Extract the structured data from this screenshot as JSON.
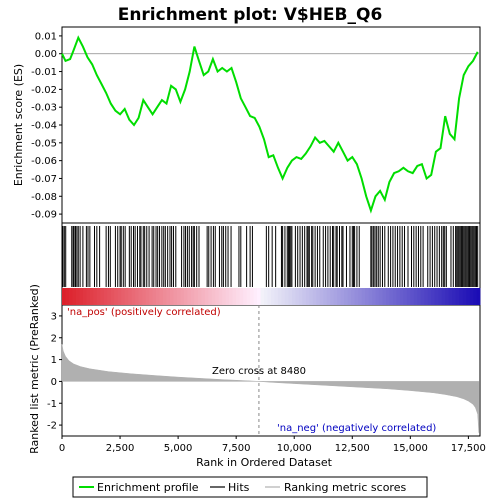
{
  "title": "Enrichment plot: V$HEB_Q6",
  "colors": {
    "enrichment": "#00dd00",
    "hits": "#000000",
    "metric_fill": "#b0b0b0",
    "positive_label": "#c00000",
    "negative_label": "#0000c0",
    "zero_line": "#888888"
  },
  "annotations": {
    "positive": "'na_pos' (positively correlated)",
    "negative": "'na_neg' (negatively correlated)",
    "zero_cross": "Zero cross at 8480"
  },
  "legend": {
    "items": [
      {
        "label": "Enrichment profile",
        "icon": "green-line"
      },
      {
        "label": "Hits",
        "icon": "black-line"
      },
      {
        "label": "Ranking metric scores",
        "icon": "gray-line"
      }
    ]
  },
  "chart_data": [
    {
      "type": "line",
      "panel": "enrichment",
      "ylabel": "Enrichment score (ES)",
      "xlim": [
        0,
        18000
      ],
      "ylim": [
        -0.095,
        0.015
      ],
      "yticks": [
        0.01,
        0.0,
        -0.01,
        -0.02,
        -0.03,
        -0.04,
        -0.05,
        -0.06,
        -0.07,
        -0.08,
        -0.09
      ],
      "ytick_labels": [
        "0.01",
        "0.00",
        "-0.01",
        "-0.02",
        "-0.03",
        "-0.04",
        "-0.05",
        "-0.06",
        "-0.07",
        "-0.08",
        "-0.09"
      ],
      "series": [
        {
          "x": [
            0,
            150,
            350,
            500,
            700,
            900,
            1100,
            1300,
            1500,
            1700,
            1900,
            2100,
            2300,
            2500,
            2700,
            2900,
            3100,
            3300,
            3500,
            3700,
            3900,
            4100,
            4300,
            4500,
            4700,
            4900,
            5100,
            5300,
            5500,
            5700,
            5900,
            6100,
            6300,
            6500,
            6700,
            6900,
            7100,
            7300,
            7500,
            7700,
            7900,
            8100,
            8300,
            8500,
            8700,
            8900,
            9100,
            9300,
            9500,
            9700,
            9900,
            10100,
            10300,
            10500,
            10700,
            10900,
            11100,
            11300,
            11500,
            11700,
            11900,
            12100,
            12300,
            12500,
            12700,
            12900,
            13100,
            13300,
            13500,
            13700,
            13900,
            14100,
            14300,
            14500,
            14700,
            14900,
            15100,
            15300,
            15500,
            15700,
            15900,
            16100,
            16300,
            16500,
            16700,
            16900,
            17100,
            17300,
            17500,
            17700,
            17900
          ],
          "y": [
            0.0,
            -0.004,
            -0.003,
            0.002,
            0.009,
            0.004,
            -0.002,
            -0.006,
            -0.012,
            -0.017,
            -0.022,
            -0.028,
            -0.032,
            -0.034,
            -0.031,
            -0.037,
            -0.04,
            -0.036,
            -0.026,
            -0.03,
            -0.034,
            -0.03,
            -0.026,
            -0.028,
            -0.018,
            -0.02,
            -0.027,
            -0.02,
            -0.01,
            0.004,
            -0.004,
            -0.012,
            -0.01,
            -0.003,
            -0.01,
            -0.008,
            -0.01,
            -0.008,
            -0.016,
            -0.025,
            -0.03,
            -0.035,
            -0.036,
            -0.041,
            -0.048,
            -0.058,
            -0.057,
            -0.064,
            -0.07,
            -0.064,
            -0.06,
            -0.058,
            -0.059,
            -0.056,
            -0.052,
            -0.047,
            -0.05,
            -0.049,
            -0.052,
            -0.055,
            -0.05,
            -0.055,
            -0.06,
            -0.058,
            -0.062,
            -0.07,
            -0.08,
            -0.088,
            -0.08,
            -0.077,
            -0.082,
            -0.072,
            -0.067,
            -0.066,
            -0.064,
            -0.066,
            -0.067,
            -0.063,
            -0.062,
            -0.07,
            -0.068,
            -0.055,
            -0.053,
            -0.035,
            -0.045,
            -0.048,
            -0.025,
            -0.012,
            -0.007,
            -0.004,
            0.001
          ]
        }
      ]
    },
    {
      "type": "heatmap",
      "panel": "hits",
      "hits": [
        40,
        100,
        160,
        420,
        480,
        520,
        580,
        640,
        700,
        780,
        900,
        1050,
        1120,
        1200,
        1400,
        1500,
        1620,
        1900,
        2000,
        2080,
        2300,
        2400,
        2500,
        2550,
        2640,
        2720,
        2900,
        2980,
        3080,
        3150,
        3250,
        3350,
        3400,
        3500,
        3560,
        3650,
        3750,
        3880,
        3950,
        4050,
        4120,
        4200,
        4300,
        4380,
        4450,
        4550,
        4650,
        4720,
        4800,
        4900,
        5150,
        5250,
        5320,
        5400,
        5480,
        5580,
        5650,
        5700,
        5800,
        5900,
        6250,
        6320,
        6420,
        6520,
        6600,
        6780,
        6880,
        6950,
        7050,
        7150,
        7280,
        7620,
        7700,
        7950,
        8100,
        8200,
        8800,
        8900,
        9050,
        9200,
        9450,
        9500,
        9600,
        9700,
        9750,
        9800,
        9850,
        9900,
        10050,
        10150,
        10250,
        10350,
        10450,
        10550,
        10600,
        10650,
        10750,
        10800,
        10900,
        11000,
        11100,
        11250,
        11350,
        11450,
        11550,
        11650,
        11700,
        11800,
        11850,
        11950,
        12050,
        12100,
        12250,
        12400,
        12500,
        12550,
        12600,
        12700,
        12800,
        13300,
        13350,
        13420,
        13480,
        13550,
        13620,
        13700,
        13800,
        13900,
        14050,
        14150,
        14250,
        14350,
        14450,
        14550,
        14650,
        14750,
        14900,
        15050,
        15150,
        15250,
        15350,
        15450,
        15550,
        15750,
        15850,
        15950,
        16050,
        16150,
        16250,
        16350,
        16420,
        16480,
        16550,
        16750,
        16850,
        16950,
        17000,
        17050,
        17100,
        17150,
        17200,
        17250,
        17300,
        17350,
        17400,
        17450,
        17500,
        17550,
        17600,
        17650,
        17700,
        17750,
        17800,
        17850,
        17900
      ]
    },
    {
      "type": "area",
      "panel": "ranked_metric",
      "xlabel": "Rank in Ordered Dataset",
      "ylabel": "Ranked list metric (PreRanked)",
      "xlim": [
        0,
        18000
      ],
      "ylim": [
        -2.5,
        3.5
      ],
      "xticks": [
        0,
        2500,
        5000,
        7500,
        10000,
        12500,
        15000,
        17500
      ],
      "xtick_labels": [
        "0",
        "2,500",
        "5,000",
        "7,500",
        "10,000",
        "12,500",
        "15,000",
        "17,500"
      ],
      "yticks": [
        3,
        2,
        1,
        0,
        -1,
        -2
      ],
      "ytick_labels": [
        "3",
        "2",
        "1",
        "0",
        "-1",
        "-2"
      ],
      "zero_cross": 8480,
      "series": [
        {
          "x": [
            0,
            50,
            150,
            300,
            500,
            800,
            1200,
            2000,
            3000,
            4000,
            5000,
            6000,
            7000,
            8000,
            8480,
            9000,
            10000,
            11000,
            12000,
            13000,
            14000,
            15000,
            16000,
            16500,
            17000,
            17300,
            17500,
            17700,
            17800,
            17900,
            17950
          ],
          "y": [
            1.7,
            1.4,
            1.15,
            0.95,
            0.8,
            0.68,
            0.58,
            0.45,
            0.35,
            0.27,
            0.2,
            0.14,
            0.08,
            0.03,
            0.0,
            -0.04,
            -0.1,
            -0.16,
            -0.22,
            -0.28,
            -0.34,
            -0.42,
            -0.52,
            -0.6,
            -0.7,
            -0.8,
            -0.9,
            -1.05,
            -1.2,
            -1.5,
            -2.35
          ]
        }
      ]
    }
  ]
}
